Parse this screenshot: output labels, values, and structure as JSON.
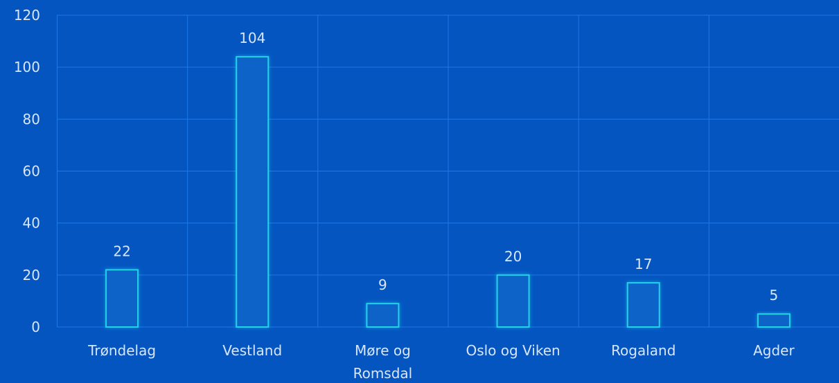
{
  "chart_data": {
    "type": "bar",
    "categories": [
      "Trøndelag",
      "Vestland",
      "Møre og Romsdal",
      "Oslo og Viken",
      "Rogaland",
      "Agder"
    ],
    "category_lines": [
      [
        "Trøndelag"
      ],
      [
        "Vestland"
      ],
      [
        "Møre og",
        "Romsdal"
      ],
      [
        "Oslo og Viken"
      ],
      [
        "Rogaland"
      ],
      [
        "Agder"
      ]
    ],
    "values": [
      22,
      104,
      9,
      20,
      17,
      5
    ],
    "value_labels": [
      "22",
      "104",
      "9",
      "20",
      "17",
      "5"
    ],
    "ylim": [
      0,
      120
    ],
    "yticks": [
      0,
      20,
      40,
      60,
      80,
      100,
      120
    ],
    "ytick_labels": [
      "0",
      "20",
      "40",
      "60",
      "80",
      "100",
      "120"
    ],
    "grid": true,
    "title": "",
    "xlabel": "",
    "ylabel": ""
  },
  "colors": {
    "background": "#0455c0",
    "grid": "#1f78e8",
    "bar_stroke": "#22d3e8",
    "text": "#d9e6fa"
  }
}
